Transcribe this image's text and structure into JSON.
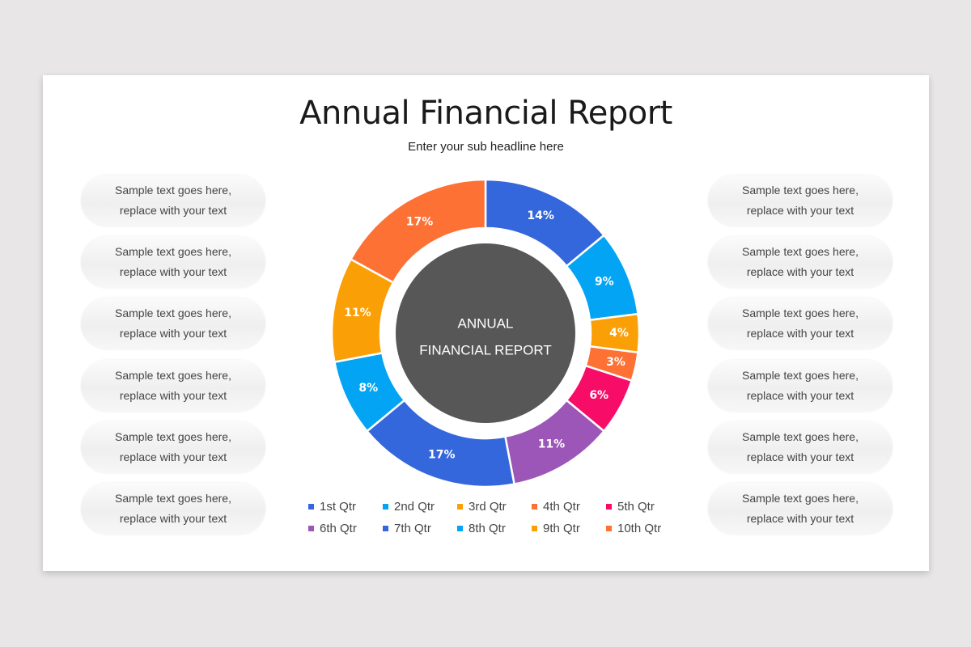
{
  "slide": {
    "title": "Annual Financial Report",
    "subtitle": "Enter your sub headline here",
    "center_label_line1": "ANNUAL",
    "center_label_line2": "FINANCIAL REPORT"
  },
  "left_pills": [
    {
      "line1": "Sample text goes here,",
      "line2": "replace with your text"
    },
    {
      "line1": "Sample text goes here,",
      "line2": "replace with your text"
    },
    {
      "line1": "Sample text goes here,",
      "line2": "replace with your text"
    },
    {
      "line1": "Sample text goes here,",
      "line2": "replace with your text"
    },
    {
      "line1": "Sample text goes here,",
      "line2": "replace with your text"
    },
    {
      "line1": "Sample text goes here,",
      "line2": "replace with your text"
    }
  ],
  "right_pills": [
    {
      "line1": "Sample text goes here,",
      "line2": "replace with your text"
    },
    {
      "line1": "Sample text goes here,",
      "line2": "replace with your text"
    },
    {
      "line1": "Sample text goes here,",
      "line2": "replace with your text"
    },
    {
      "line1": "Sample text goes here,",
      "line2": "replace with your text"
    },
    {
      "line1": "Sample text goes here,",
      "line2": "replace with your text"
    },
    {
      "line1": "Sample text goes here,",
      "line2": "replace with your text"
    }
  ],
  "chart_data": {
    "type": "pie",
    "variant": "donut",
    "title": "Annual Financial Report",
    "center_text": "ANNUAL FINANCIAL REPORT",
    "categories": [
      "1st Qtr",
      "2nd Qtr",
      "3rd Qtr",
      "4th Qtr",
      "5th Qtr",
      "6th Qtr",
      "7th Qtr",
      "8th Qtr",
      "9th Qtr",
      "10th Qtr"
    ],
    "values": [
      14,
      9,
      4,
      3,
      6,
      11,
      17,
      8,
      11,
      17
    ],
    "labels": [
      "14%",
      "9%",
      "4%",
      "3%",
      "6%",
      "11%",
      "17%",
      "8%",
      "11%",
      "17%"
    ],
    "colors": [
      "#3567dc",
      "#03a4f4",
      "#fb9f06",
      "#fd7135",
      "#f70d68",
      "#9c56b8",
      "#3567dc",
      "#03a4f4",
      "#fb9f06",
      "#fd7135"
    ],
    "start_angle": "12 o'clock, clockwise",
    "legend_position": "bottom",
    "center_color": "#575757"
  }
}
